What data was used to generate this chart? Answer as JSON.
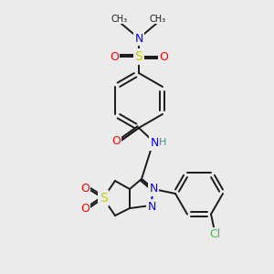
{
  "background_color": "#ebebeb",
  "bond_color": "#1a1a1a",
  "atom_colors": {
    "N": "#0000ff",
    "O": "#ff0000",
    "S": "#cccc00",
    "Cl": "#33cc33",
    "H": "#4a8f8f",
    "C": "#1a1a1a"
  },
  "figsize": [
    3.0,
    3.0
  ],
  "dpi": 100
}
